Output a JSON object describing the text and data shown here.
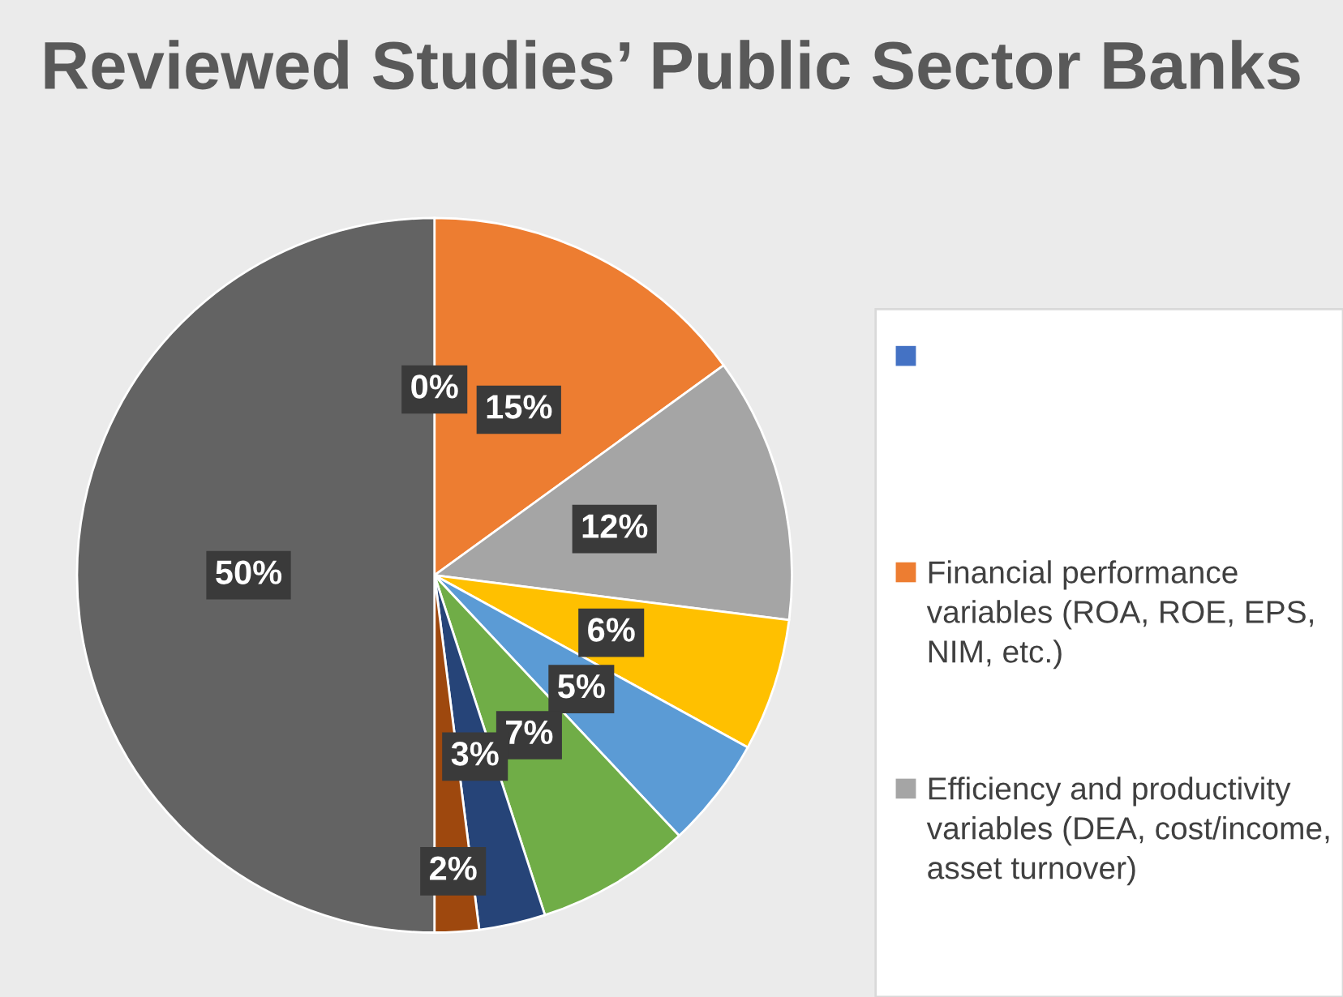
{
  "chart_data": {
    "type": "pie",
    "title": "Reviewed Studies’ Public Sector Banks",
    "categories": [
      null,
      "Financial performance variables (ROA, ROE, EPS, NIM, etc.)",
      "Efficiency and productivity variables (DEA, cost/income, asset turnover)",
      null,
      null,
      null,
      null,
      null,
      null
    ],
    "values": [
      0,
      15,
      12,
      6,
      5,
      7,
      3,
      2,
      50
    ],
    "colors": [
      "#4472c4",
      "#ed7d31",
      "#a5a5a5",
      "#ffc000",
      "#5b9bd5",
      "#70ad47",
      "#264478",
      "#9e480e",
      "#636363"
    ],
    "value_labels": [
      "0%",
      "15%",
      "12%",
      "6%",
      "5%",
      "7%",
      "3%",
      "2%",
      "50%"
    ],
    "legend": "right"
  }
}
